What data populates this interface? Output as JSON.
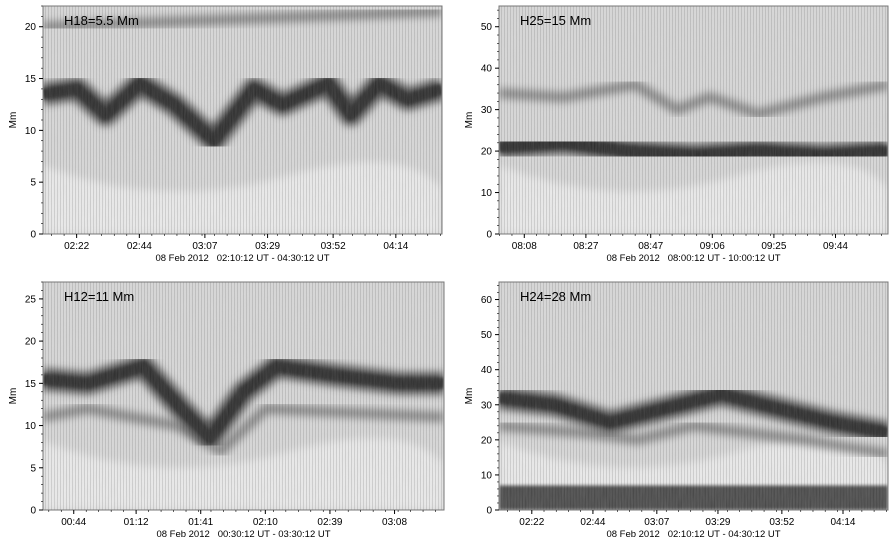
{
  "figure": {
    "background": "#ffffff",
    "frame_color": "#777777",
    "ink": "#000000"
  },
  "chart_data": [
    {
      "type": "heatmap",
      "title": "H18=5.5 Mm",
      "subtitle": "08 Feb 2012   02:10:12 UT - 04:30:12 UT",
      "xlabel": "",
      "ylabel": "Mm",
      "xlim": [
        0,
        140
      ],
      "x_tick_values": [
        11.8,
        33.8,
        56.8,
        78.8,
        101.8,
        123.8
      ],
      "x_tick_labels": [
        "02:22",
        "02:44",
        "03:07",
        "03:29",
        "03:52",
        "04:14"
      ],
      "ylim": [
        0,
        22
      ],
      "y_ticks": [
        0,
        5,
        10,
        15,
        20
      ],
      "colormap": "grayscale",
      "dark_band": [
        [
          0,
          13.5
        ],
        [
          12,
          14
        ],
        [
          22,
          11.5
        ],
        [
          34,
          14.5
        ],
        [
          46,
          12.5
        ],
        [
          60,
          9
        ],
        [
          74,
          14
        ],
        [
          84,
          12.5
        ],
        [
          100,
          14.5
        ],
        [
          108,
          11.5
        ],
        [
          118,
          14.5
        ],
        [
          128,
          13
        ],
        [
          140,
          14
        ]
      ],
      "secondary_band": [
        [
          0,
          20
        ],
        [
          140,
          21.5
        ]
      ]
    },
    {
      "type": "heatmap",
      "title": "H25=15 Mm",
      "subtitle": "08 Feb 2012   08:00:12 UT - 10:00:12 UT",
      "xlabel": "",
      "ylabel": "Mm",
      "xlim": [
        0,
        120
      ],
      "x_tick_values": [
        7.8,
        26.8,
        46.8,
        65.8,
        84.8,
        103.8
      ],
      "x_tick_labels": [
        "08:08",
        "08:27",
        "08:47",
        "09:06",
        "09:25",
        "09:44"
      ],
      "ylim": [
        0,
        55
      ],
      "y_ticks": [
        0,
        10,
        20,
        30,
        40,
        50
      ],
      "colormap": "grayscale",
      "dark_band": [
        [
          0,
          21
        ],
        [
          20,
          22
        ],
        [
          40,
          20
        ],
        [
          60,
          19
        ],
        [
          80,
          20
        ],
        [
          100,
          19
        ],
        [
          120,
          20
        ]
      ],
      "secondary_band": [
        [
          0,
          34
        ],
        [
          20,
          33
        ],
        [
          42,
          36
        ],
        [
          55,
          30
        ],
        [
          65,
          33
        ],
        [
          80,
          29
        ],
        [
          100,
          33
        ],
        [
          120,
          36
        ]
      ]
    },
    {
      "type": "heatmap",
      "title": "H12=11 Mm",
      "subtitle": "08 Feb 2012   00:30:12 UT - 03:30:12 UT",
      "xlabel": "",
      "ylabel": "Mm",
      "xlim": [
        0,
        180
      ],
      "x_tick_values": [
        13.8,
        41.8,
        70.8,
        99.8,
        128.8,
        157.8
      ],
      "x_tick_labels": [
        "00:44",
        "01:12",
        "01:41",
        "02:10",
        "02:39",
        "03:08"
      ],
      "ylim": [
        0,
        27
      ],
      "y_ticks": [
        0,
        5,
        10,
        15,
        20,
        25
      ],
      "colormap": "grayscale",
      "dark_band": [
        [
          0,
          15.5
        ],
        [
          20,
          15
        ],
        [
          45,
          17
        ],
        [
          62,
          12
        ],
        [
          75,
          8.5
        ],
        [
          90,
          14
        ],
        [
          105,
          17
        ],
        [
          130,
          16
        ],
        [
          160,
          15
        ],
        [
          180,
          15
        ]
      ],
      "secondary_band": [
        [
          0,
          11
        ],
        [
          20,
          12
        ],
        [
          60,
          10
        ],
        [
          80,
          7
        ],
        [
          100,
          12
        ],
        [
          180,
          11
        ]
      ]
    },
    {
      "type": "heatmap",
      "title": "H24=28 Mm",
      "subtitle": "08 Feb 2012   02:10:12 UT - 04:30:12 UT",
      "xlabel": "",
      "ylabel": "Mm",
      "xlim": [
        0,
        140
      ],
      "x_tick_values": [
        11.8,
        33.8,
        56.8,
        78.8,
        101.8,
        123.8
      ],
      "x_tick_labels": [
        "02:22",
        "02:44",
        "03:07",
        "03:29",
        "03:52",
        "04:14"
      ],
      "ylim": [
        0,
        65
      ],
      "y_ticks": [
        0,
        10,
        20,
        30,
        40,
        50,
        60
      ],
      "colormap": "grayscale",
      "dark_band": [
        [
          0,
          32
        ],
        [
          20,
          30
        ],
        [
          40,
          25
        ],
        [
          55,
          28
        ],
        [
          80,
          33
        ],
        [
          100,
          29
        ],
        [
          120,
          25
        ],
        [
          140,
          22
        ]
      ],
      "secondary_band": [
        [
          0,
          24
        ],
        [
          30,
          22
        ],
        [
          50,
          20
        ],
        [
          70,
          24
        ],
        [
          90,
          22
        ],
        [
          110,
          20
        ],
        [
          140,
          16
        ]
      ],
      "bottom_band": [
        0,
        7
      ]
    }
  ]
}
